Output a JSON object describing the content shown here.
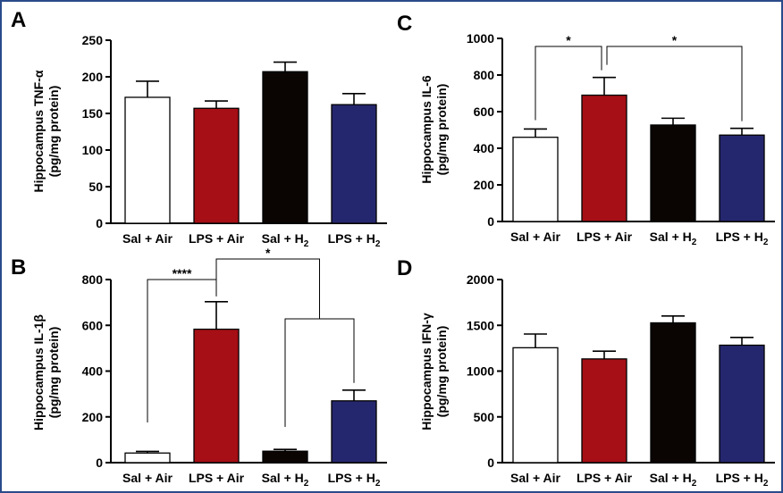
{
  "colors": {
    "frame": "#2a4a8a",
    "white_bar": "#ffffff",
    "red_bar": "#a50f15",
    "black_bar": "#0a0503",
    "navy_bar": "#25276e"
  },
  "chart_data": [
    {
      "panel_label": "A",
      "type": "bar",
      "ylabel_line1": "Hippocampus TNF-α",
      "ylabel_line2": "(pg/mg protein)",
      "categories": [
        {
          "main": "Sal + Air",
          "sub": ""
        },
        {
          "main": "LPS + Air",
          "sub": ""
        },
        {
          "main": "Sal + H",
          "sub": "2"
        },
        {
          "main": "LPS + H",
          "sub": "2"
        }
      ],
      "values": [
        172,
        157,
        207,
        162
      ],
      "errors": [
        22,
        10,
        13,
        15
      ],
      "ylim": [
        0,
        250
      ],
      "yticks": [
        0,
        50,
        100,
        150,
        200,
        250
      ],
      "significance": []
    },
    {
      "panel_label": "B",
      "type": "bar",
      "ylabel_line1": "Hippocampus IL-1β",
      "ylabel_line2": "(pg/mg protein)",
      "categories": [
        {
          "main": "Sal + Air",
          "sub": ""
        },
        {
          "main": "LPS + Air",
          "sub": ""
        },
        {
          "main": "Sal + H",
          "sub": "2"
        },
        {
          "main": "LPS + H",
          "sub": "2"
        }
      ],
      "values": [
        42,
        583,
        50,
        270
      ],
      "errors": [
        7,
        120,
        8,
        47
      ],
      "ylim": [
        0,
        800
      ],
      "yticks": [
        0,
        200,
        400,
        600,
        800
      ],
      "significance": [
        {
          "label": "****",
          "from": 0,
          "to": 1
        },
        {
          "label": "*",
          "from": 1,
          "to": "2-3"
        }
      ]
    },
    {
      "panel_label": "C",
      "type": "bar",
      "ylabel_line1": "Hippocampus IL-6",
      "ylabel_line2": "(pg/mg protein)",
      "categories": [
        {
          "main": "Sal + Air",
          "sub": ""
        },
        {
          "main": "LPS + Air",
          "sub": ""
        },
        {
          "main": "Sal + H",
          "sub": "2"
        },
        {
          "main": "LPS + H",
          "sub": "2"
        }
      ],
      "values": [
        460,
        690,
        527,
        472
      ],
      "errors": [
        45,
        97,
        37,
        37
      ],
      "ylim": [
        0,
        1000
      ],
      "yticks": [
        0,
        200,
        400,
        600,
        800,
        1000
      ],
      "significance": [
        {
          "label": "*",
          "from": 0,
          "to": 1
        },
        {
          "label": "*",
          "from": 1,
          "to": 3
        }
      ]
    },
    {
      "panel_label": "D",
      "type": "bar",
      "ylabel_line1": "Hippocampus IFN-γ",
      "ylabel_line2": "(pg/mg protein)",
      "categories": [
        {
          "main": "Sal + Air",
          "sub": ""
        },
        {
          "main": "LPS + Air",
          "sub": ""
        },
        {
          "main": "Sal + H",
          "sub": "2"
        },
        {
          "main": "LPS + H",
          "sub": "2"
        }
      ],
      "values": [
        1255,
        1133,
        1527,
        1283
      ],
      "errors": [
        150,
        85,
        75,
        85
      ],
      "ylim": [
        0,
        2000
      ],
      "yticks": [
        0,
        500,
        1000,
        1500,
        2000
      ],
      "significance": []
    }
  ]
}
